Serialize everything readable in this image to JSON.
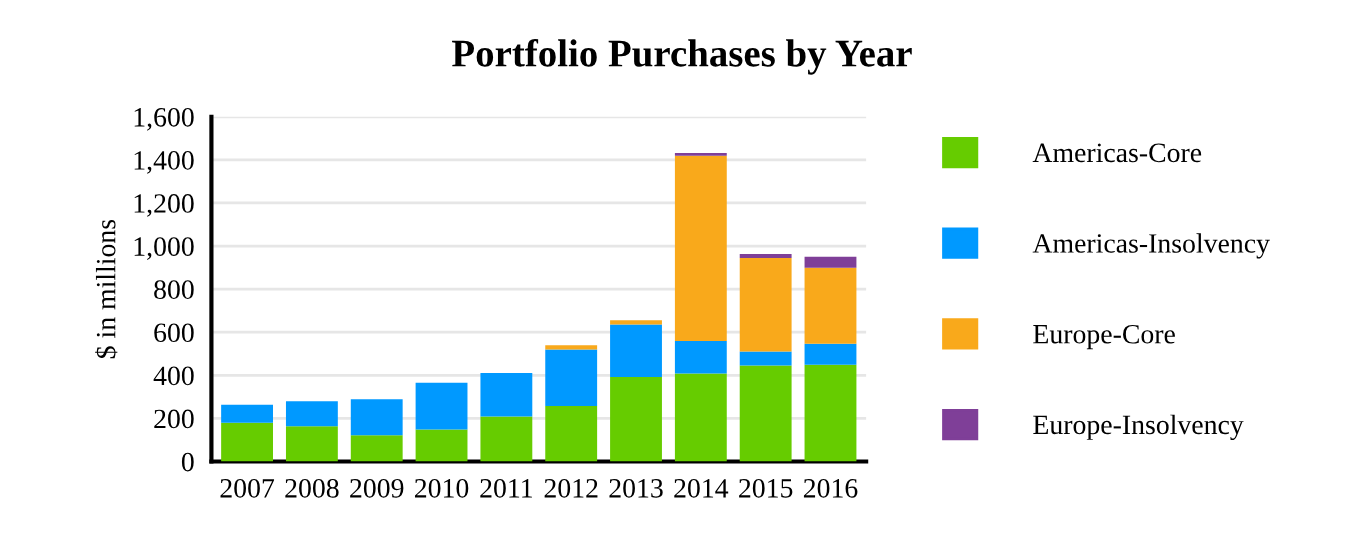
{
  "chart_data": {
    "type": "bar",
    "title": "Portfolio Purchases by Year",
    "ylabel": "$ in millions",
    "categories": [
      "2007",
      "2008",
      "2009",
      "2010",
      "2011",
      "2012",
      "2013",
      "2014",
      "2015",
      "2016"
    ],
    "stacked": true,
    "series": [
      {
        "name": "Americas-Core",
        "color": "#66cc00",
        "values": [
          180,
          164,
          122,
          148,
          209,
          257,
          392,
          408,
          446,
          449
        ]
      },
      {
        "name": "Americas-Insolvency",
        "color": "#0099ff",
        "values": [
          83,
          115,
          167,
          218,
          202,
          263,
          244,
          151,
          64,
          97
        ]
      },
      {
        "name": "Europe-Core",
        "color": "#f9a91b",
        "values": [
          0,
          0,
          0,
          0,
          0,
          19,
          19,
          860,
          434,
          353
        ]
      },
      {
        "name": "Europe-Insolvency",
        "color": "#7f3f98",
        "values": [
          0,
          0,
          0,
          0,
          0,
          0,
          0,
          13,
          19,
          51
        ]
      }
    ],
    "ylim": [
      0,
      1600
    ],
    "yticks": [
      {
        "value": 0,
        "label": "0"
      },
      {
        "value": 200,
        "label": "200"
      },
      {
        "value": 400,
        "label": "400"
      },
      {
        "value": 600,
        "label": "600"
      },
      {
        "value": 800,
        "label": "800"
      },
      {
        "value": 1000,
        "label": "1,000"
      },
      {
        "value": 1200,
        "label": "1,200"
      },
      {
        "value": 1400,
        "label": "1,400"
      },
      {
        "value": 1600,
        "label": "1,600"
      }
    ],
    "grid": "y",
    "legend": "right"
  }
}
